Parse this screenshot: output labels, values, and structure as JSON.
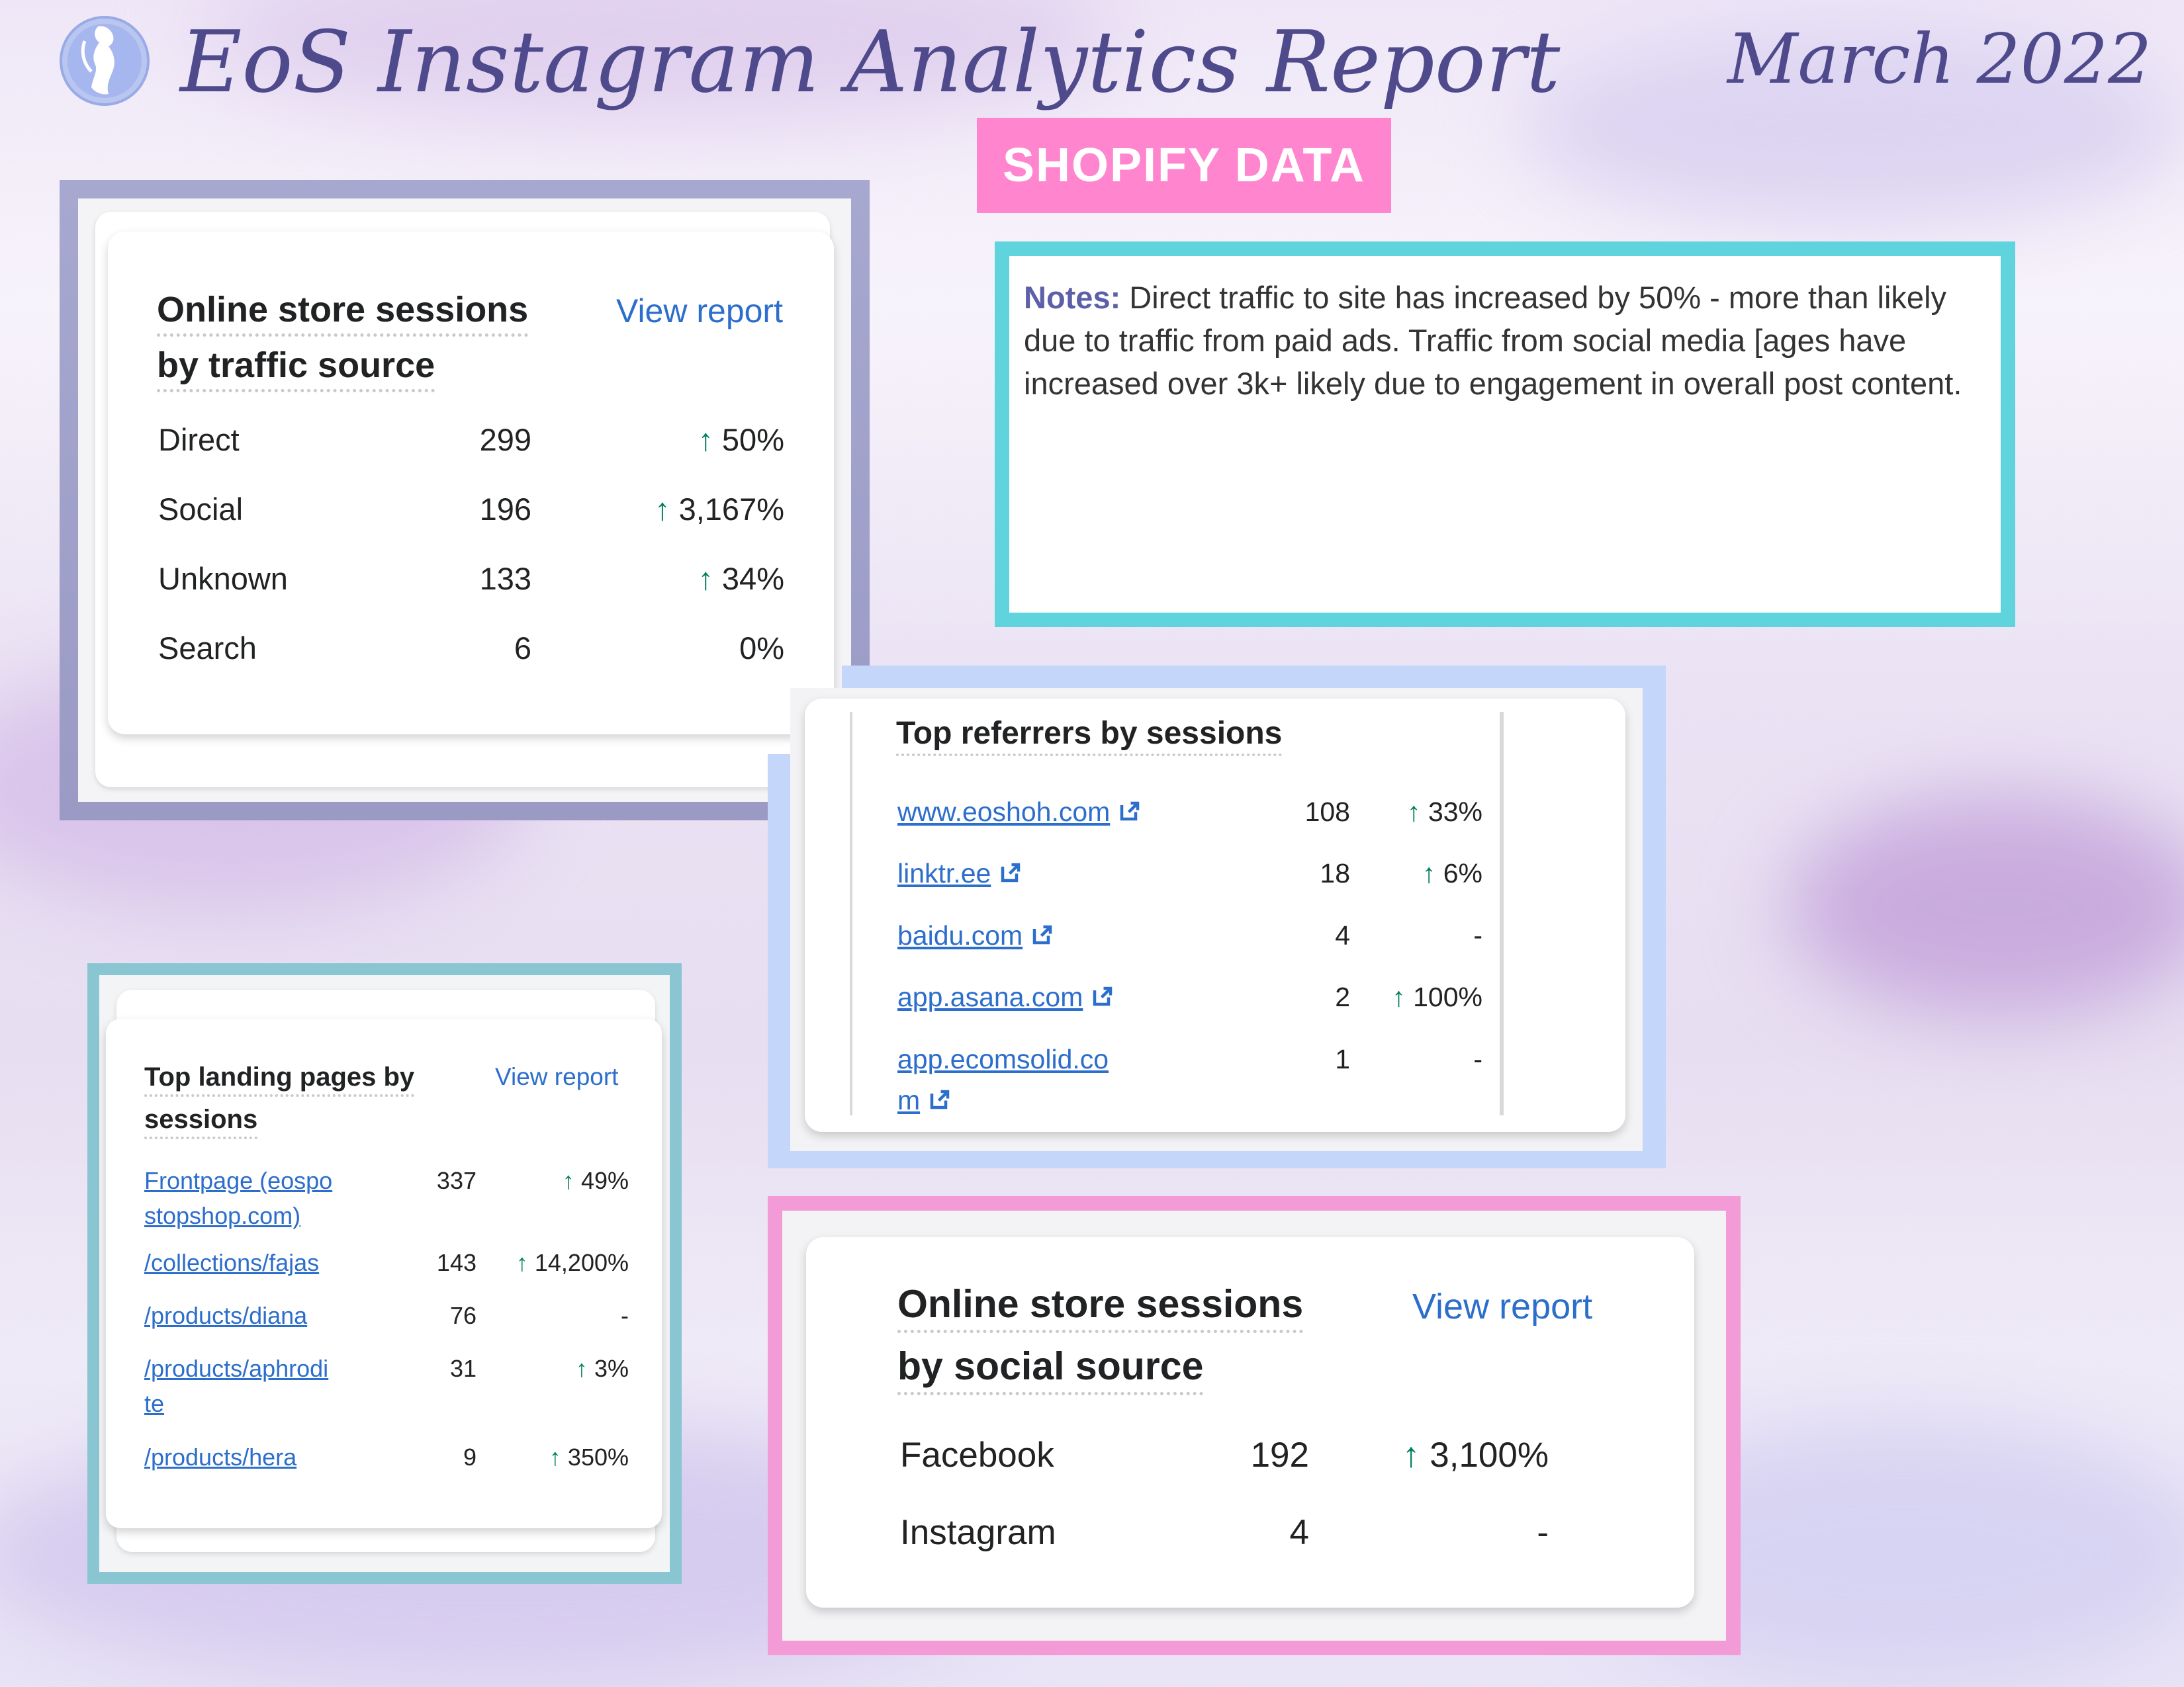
{
  "header": {
    "report_title": "EoS Instagram Analytics Report",
    "date": "March 2022",
    "logo": "woman-silhouette-logo"
  },
  "section_badge": "SHOPIFY DATA",
  "notes": {
    "label": "Notes:",
    "text": "Direct traffic to site has increased by 50% - more than likely due to traffic from paid ads. Traffic from social media [ages have increased over 3k+ likely due to engagement in overall post content."
  },
  "traffic_source": {
    "title_line1": "Online store sessions",
    "title_line2": "by traffic source",
    "view_report": "View report",
    "rows": [
      {
        "label": "Direct",
        "value": "299",
        "arrow": "↑",
        "change": "50%"
      },
      {
        "label": "Social",
        "value": "196",
        "arrow": "↑",
        "change": "3,167%"
      },
      {
        "label": "Unknown",
        "value": "133",
        "arrow": "↑",
        "change": "34%"
      },
      {
        "label": "Search",
        "value": "6",
        "arrow": "",
        "change": "0%"
      }
    ]
  },
  "referrers": {
    "title": "Top referrers by sessions",
    "rows": [
      {
        "label": "www.eoshoh.com",
        "label2": "",
        "value": "108",
        "arrow": "↑",
        "change": "33%"
      },
      {
        "label": "linktr.ee",
        "label2": "",
        "value": "18",
        "arrow": "↑",
        "change": "6%"
      },
      {
        "label": "baidu.com",
        "label2": "",
        "value": "4",
        "arrow": "",
        "change": "-"
      },
      {
        "label": "app.asana.com",
        "label2": "",
        "value": "2",
        "arrow": "↑",
        "change": "100%"
      },
      {
        "label": "app.ecomsolid.co",
        "label2": "m",
        "value": "1",
        "arrow": "",
        "change": "-"
      }
    ]
  },
  "landing_pages": {
    "title_line1": "Top landing pages by",
    "title_line2": "sessions",
    "view_report": "View report",
    "rows": [
      {
        "label": "Frontpage (eospo",
        "label2": "stopshop.com)",
        "value": "337",
        "arrow": "↑",
        "change": "49%"
      },
      {
        "label": "/collections/fajas",
        "label2": "",
        "value": "143",
        "arrow": "↑",
        "change": "14,200%"
      },
      {
        "label": "/products/diana",
        "label2": "",
        "value": "76",
        "arrow": "",
        "change": "-"
      },
      {
        "label": "/products/aphrodi",
        "label2": "te",
        "value": "31",
        "arrow": "↑",
        "change": "3%"
      },
      {
        "label": "/products/hera",
        "label2": "",
        "value": "9",
        "arrow": "↑",
        "change": "350%"
      }
    ]
  },
  "social_source": {
    "title_line1": "Online store sessions",
    "title_line2": "by social source",
    "view_report": "View report",
    "rows": [
      {
        "label": "Facebook",
        "value": "192",
        "arrow": "↑",
        "change": "3,100%"
      },
      {
        "label": "Instagram",
        "value": "4",
        "arrow": "",
        "change": "-"
      }
    ]
  },
  "colors": {
    "traffic_frame": "#9b9bc6",
    "notes_frame": "#5fd4dc",
    "referrers_frame": "#c4d6fa",
    "landing_frame": "#8ac6d2",
    "social_frame": "#f39bd6",
    "badge": "#ff85cf"
  }
}
